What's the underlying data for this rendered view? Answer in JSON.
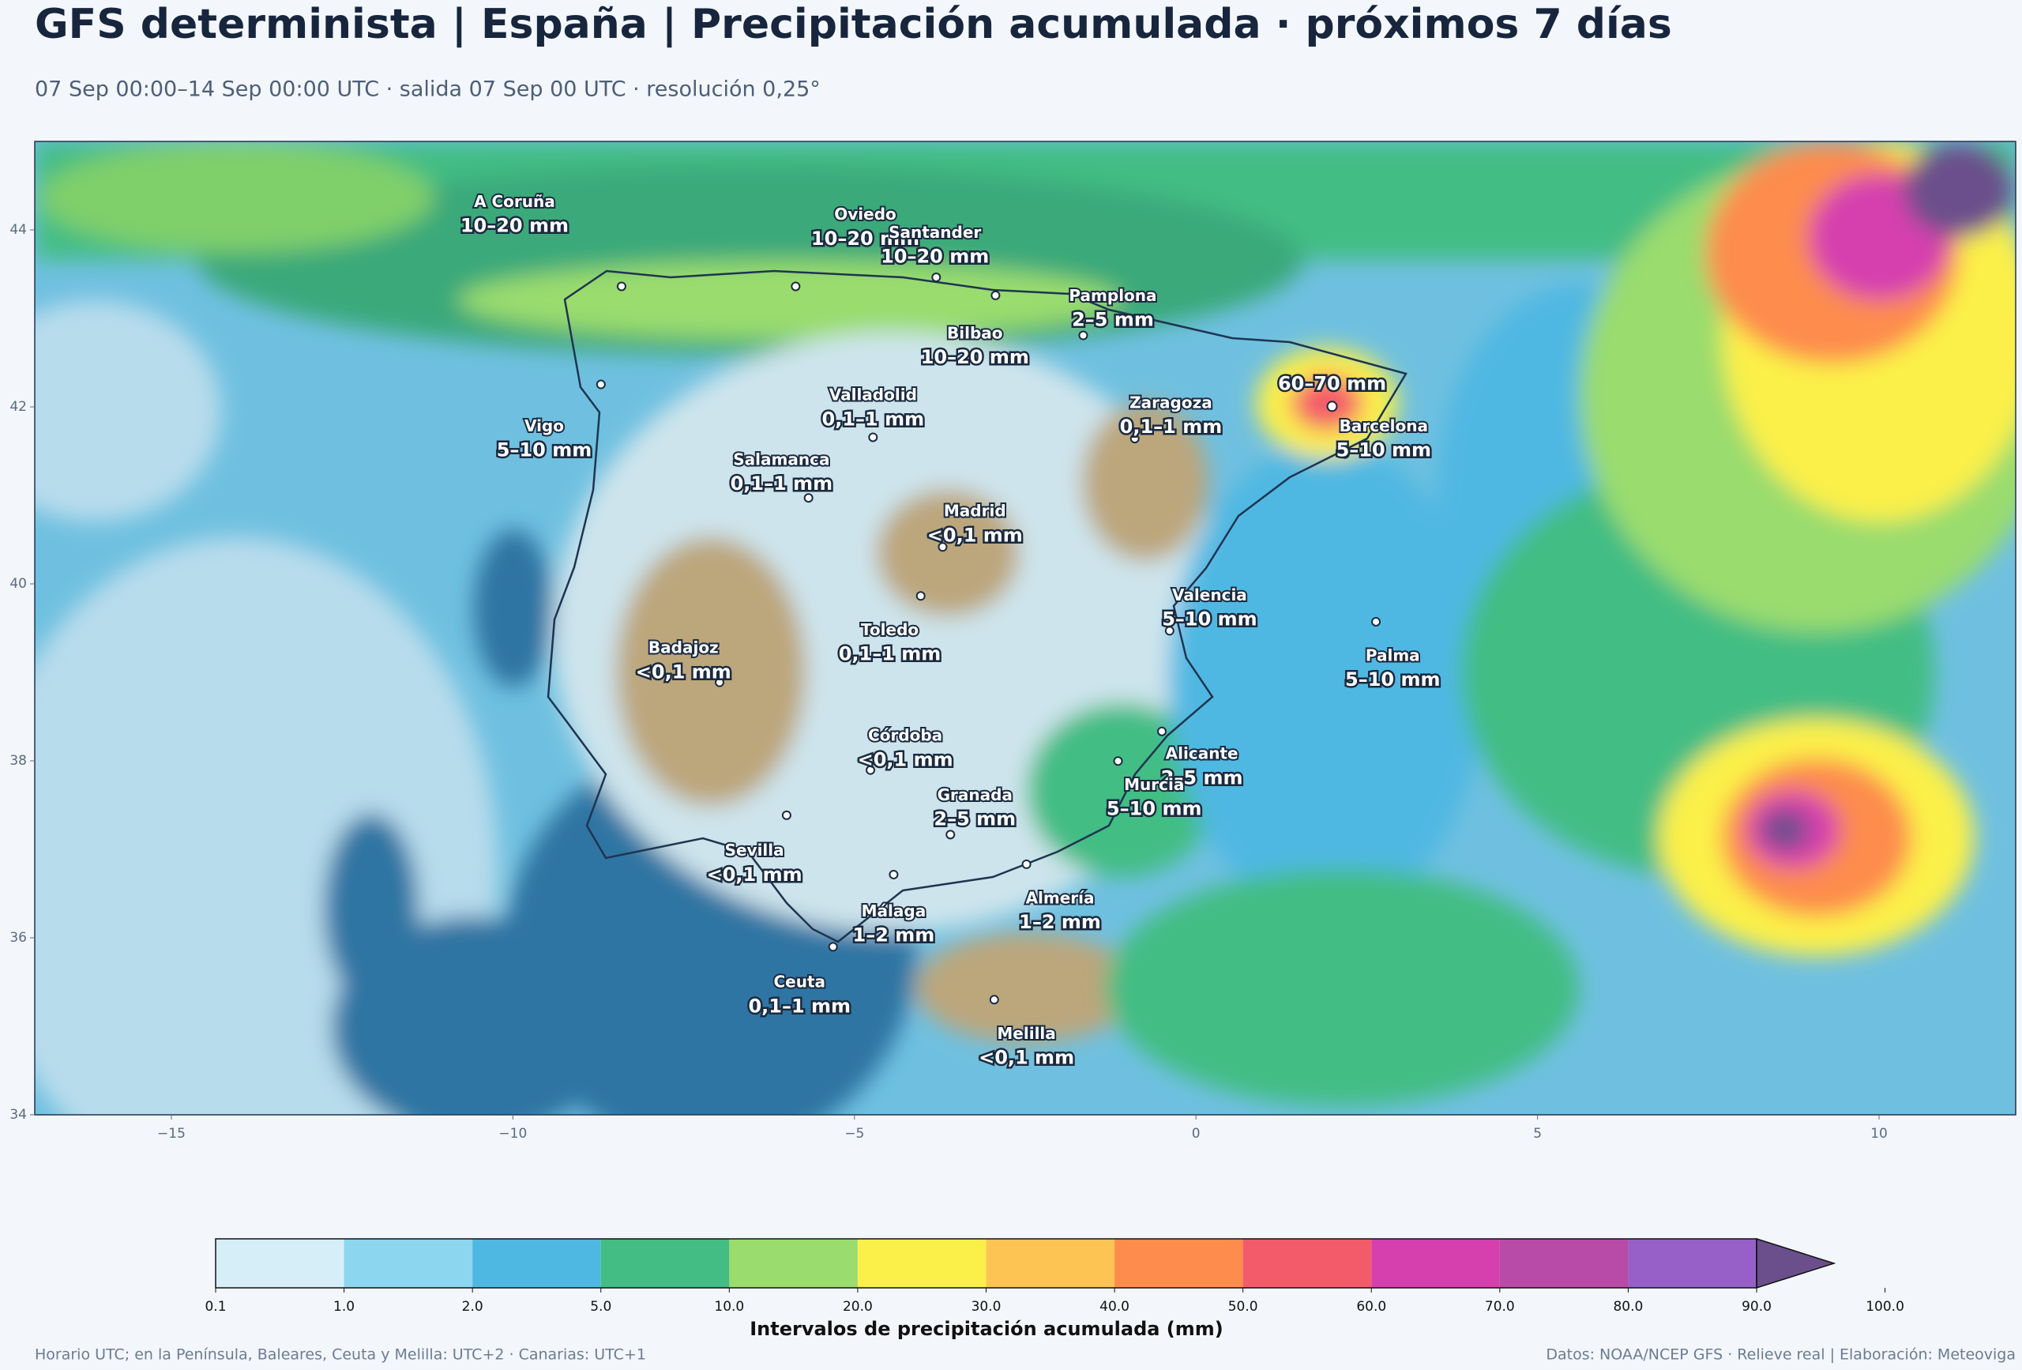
{
  "header": {
    "title": "GFS determinista | España | Precipitación acumulada · próximos 7 días",
    "subtitle": "07 Sep 00:00–14 Sep 00:00 UTC · salida 07 Sep 00 UTC · resolución 0,25°"
  },
  "map": {
    "xlim": [
      -17,
      12
    ],
    "ylim": [
      34,
      45
    ],
    "xticks": [
      {
        "value": -15,
        "label": "−15"
      },
      {
        "value": -10,
        "label": "−10"
      },
      {
        "value": -5,
        "label": "−5"
      },
      0,
      5,
      10
    ],
    "yticks": [
      34,
      36,
      38,
      40,
      42,
      44
    ],
    "max_label": "60–70 mm",
    "cities": [
      {
        "name": "A Coruña",
        "label": "10–20 mm"
      },
      {
        "name": "Oviedo",
        "label": "10–20 mm"
      },
      {
        "name": "Santander",
        "label": "10–20 mm"
      },
      {
        "name": "Pamplona",
        "label": "2–5 mm"
      },
      {
        "name": "Bilbao",
        "label": "10–20 mm"
      },
      {
        "name": "Valladolid",
        "label": "0,1–1 mm"
      },
      {
        "name": "Zaragoza",
        "label": "0,1–1 mm"
      },
      {
        "name": "Barcelona",
        "label": "5–10 mm"
      },
      {
        "name": "Vigo",
        "label": "5–10 mm"
      },
      {
        "name": "Salamanca",
        "label": "0,1–1 mm"
      },
      {
        "name": "Madrid",
        "label": "<0,1 mm"
      },
      {
        "name": "Valencia",
        "label": "5–10 mm"
      },
      {
        "name": "Toledo",
        "label": "0,1–1 mm"
      },
      {
        "name": "Palma",
        "label": "5–10 mm"
      },
      {
        "name": "Badajoz",
        "label": "<0,1 mm"
      },
      {
        "name": "Córdoba",
        "label": "<0,1 mm"
      },
      {
        "name": "Alicante",
        "label": "2–5 mm"
      },
      {
        "name": "Murcia",
        "label": "5–10 mm"
      },
      {
        "name": "Granada",
        "label": "2–5 mm"
      },
      {
        "name": "Sevilla",
        "label": "<0,1 mm"
      },
      {
        "name": "Almería",
        "label": "1–2 mm"
      },
      {
        "name": "Málaga",
        "label": "1–2 mm"
      },
      {
        "name": "Ceuta",
        "label": "0,1–1 mm"
      },
      {
        "name": "Melilla",
        "label": "<0,1 mm"
      }
    ]
  },
  "colorbar": {
    "label": "Intervalos de precipitación acumulada (mm)",
    "levels": [
      0.1,
      {
        "value": 1,
        "label": "1.0"
      },
      {
        "value": 2,
        "label": "2.0"
      },
      {
        "value": 5,
        "label": "5.0"
      },
      {
        "value": 10,
        "label": "10.0"
      },
      {
        "value": 20,
        "label": "20.0"
      },
      {
        "value": 30,
        "label": "30.0"
      },
      {
        "value": 40,
        "label": "40.0"
      },
      {
        "value": 50,
        "label": "50.0"
      },
      {
        "value": 60,
        "label": "60.0"
      },
      {
        "value": 70,
        "label": "70.0"
      },
      {
        "value": 80,
        "label": "80.0"
      },
      {
        "value": 90,
        "label": "90.0"
      },
      {
        "value": 100,
        "label": "100.0"
      }
    ],
    "colors": [
      "#d6eef7",
      "#8dd6ef",
      "#4fb8e2",
      "#43bd84",
      "#9adc6e",
      "#fbf04a",
      "#fdc454",
      "#fd8c4d",
      "#f45b6a",
      "#d63fae",
      "#b84aa8",
      "#9760c8",
      "#6b4f8c"
    ]
  },
  "footer": {
    "left": "Horario UTC; en la Península, Baleares, Ceuta y Melilla: UTC+2 · Canarias: UTC+1",
    "right": "Datos: NOAA/NCEP GFS · Relieve real | Elaboración: Meteoviga"
  }
}
